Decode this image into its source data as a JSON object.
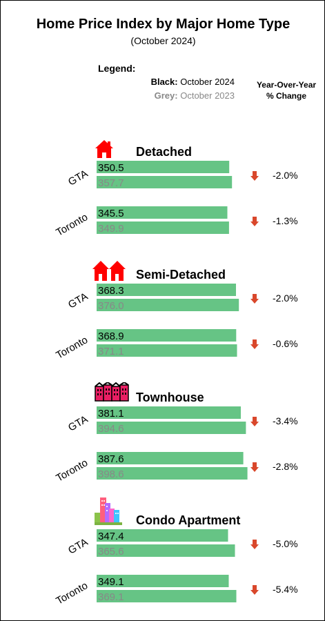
{
  "title": "Home Price Index by Major Home Type",
  "subtitle": "(October 2024)",
  "legend": {
    "heading": "Legend:",
    "black_key": "Black:",
    "black_value": "October 2024",
    "grey_key": "Grey:",
    "grey_value": "October 2023"
  },
  "yoy_header": {
    "line1": "Year-Over-Year",
    "line2": "% Change"
  },
  "colors": {
    "bar": "#66c485",
    "arrow": "#d9472b",
    "current_text": "#000000",
    "prior_text": "#888888",
    "icon_red": "#ff0000"
  },
  "icons": [
    "house-icon",
    "semi-detached-icon",
    "townhouse-icon",
    "condo-icon"
  ],
  "chart_data": {
    "type": "bar",
    "orientation": "horizontal",
    "series": [
      {
        "name": "October 2024"
      },
      {
        "name": "October 2023"
      }
    ],
    "groups": [
      {
        "label": "Detached",
        "rows": [
          {
            "region": "GTA",
            "current": 350.5,
            "current_label": "350.5",
            "prior": 357.7,
            "prior_label": "357.7",
            "change": "-2.0%"
          },
          {
            "region": "Toronto",
            "current": 345.5,
            "current_label": "345.5",
            "prior": 349.9,
            "prior_label": "349.9",
            "change": "-1.3%"
          }
        ]
      },
      {
        "label": "Semi-Detached",
        "rows": [
          {
            "region": "GTA",
            "current": 368.3,
            "current_label": "368.3",
            "prior": 376.0,
            "prior_label": "376.0",
            "change": "-2.0%"
          },
          {
            "region": "Toronto",
            "current": 368.9,
            "current_label": "368.9",
            "prior": 371.1,
            "prior_label": "371.1",
            "change": "-0.6%"
          }
        ]
      },
      {
        "label": "Townhouse",
        "rows": [
          {
            "region": "GTA",
            "current": 381.1,
            "current_label": "381.1",
            "prior": 394.6,
            "prior_label": "394.6",
            "change": "-3.4%"
          },
          {
            "region": "Toronto",
            "current": 387.6,
            "current_label": "387.6",
            "prior": 398.6,
            "prior_label": "398.6",
            "change": "-2.8%"
          }
        ]
      },
      {
        "label": "Condo Apartment",
        "rows": [
          {
            "region": "GTA",
            "current": 347.4,
            "current_label": "347.4",
            "prior": 365.6,
            "prior_label": "365.6",
            "change": "-5.0%"
          },
          {
            "region": "Toronto",
            "current": 349.1,
            "current_label": "349.1",
            "prior": 369.1,
            "prior_label": "369.1",
            "change": "-5.4%"
          }
        ]
      }
    ]
  }
}
